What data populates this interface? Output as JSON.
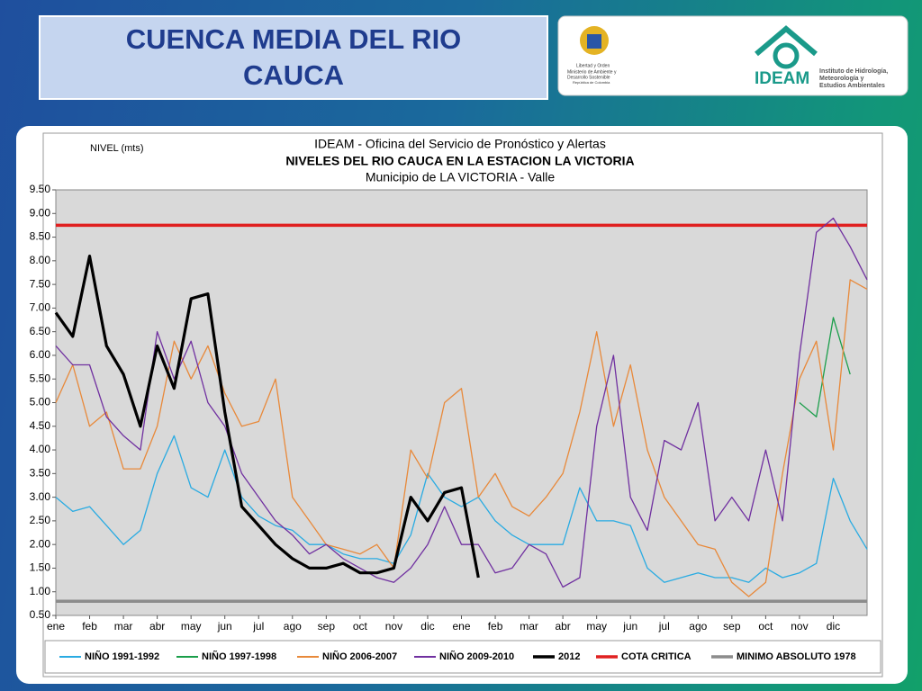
{
  "header": {
    "title": [
      "CUENCA  MEDIA DEL RIO",
      "CAUCA"
    ],
    "logo_left": [
      "Libertad y Orden",
      "Ministerio de Ambiente y",
      "Desarrollo Sostenible",
      "República de Colombia"
    ],
    "logo_right": {
      "name": "IDEAM",
      "subtitle": [
        "Instituto de Hidrología,",
        "Meteorología y",
        "Estudios Ambientales"
      ]
    }
  },
  "chart_data": {
    "type": "line",
    "ylabel": "NIVEL (mts)",
    "title": "IDEAM - Oficina del Servicio de Pronóstico y Alertas",
    "subtitle": "NIVELES DEL RIO CAUCA EN LA ESTACION LA VICTORIA",
    "subtitle2": "Municipio de LA VICTORIA - Valle",
    "x": [
      0,
      0.5,
      1,
      1.5,
      2,
      2.5,
      3,
      3.5,
      4,
      4.5,
      5,
      5.5,
      6,
      6.5,
      7,
      7.5,
      8,
      8.5,
      9,
      9.5,
      10,
      10.5,
      11,
      11.5,
      12,
      12.5,
      13,
      13.5,
      14,
      14.5,
      15,
      15.5,
      16,
      16.5,
      17,
      17.5,
      18,
      18.5,
      19,
      19.5,
      20,
      20.5,
      21,
      21.5,
      22,
      22.5,
      23,
      23.5,
      24
    ],
    "xlim": [
      0,
      24
    ],
    "xticks": [
      {
        "value": 0,
        "label": "ene"
      },
      {
        "value": 1,
        "label": "feb"
      },
      {
        "value": 2,
        "label": "mar"
      },
      {
        "value": 3,
        "label": "abr"
      },
      {
        "value": 4,
        "label": "may"
      },
      {
        "value": 5,
        "label": "jun"
      },
      {
        "value": 6,
        "label": "jul"
      },
      {
        "value": 7,
        "label": "ago"
      },
      {
        "value": 8,
        "label": "sep"
      },
      {
        "value": 9,
        "label": "oct"
      },
      {
        "value": 10,
        "label": "nov"
      },
      {
        "value": 11,
        "label": "dic"
      },
      {
        "value": 12,
        "label": "ene"
      },
      {
        "value": 13,
        "label": "feb"
      },
      {
        "value": 14,
        "label": "mar"
      },
      {
        "value": 15,
        "label": "abr"
      },
      {
        "value": 16,
        "label": "may"
      },
      {
        "value": 17,
        "label": "jun"
      },
      {
        "value": 18,
        "label": "jul"
      },
      {
        "value": 19,
        "label": "ago"
      },
      {
        "value": 20,
        "label": "sep"
      },
      {
        "value": 21,
        "label": "oct"
      },
      {
        "value": 22,
        "label": "nov"
      },
      {
        "value": 23,
        "label": "dic"
      }
    ],
    "ylim": [
      0.5,
      9.5
    ],
    "yticks": [
      {
        "value": 0.5,
        "label": "0.50"
      },
      {
        "value": 1,
        "label": "1.00"
      },
      {
        "value": 1.5,
        "label": "1.50"
      },
      {
        "value": 2,
        "label": "2.00"
      },
      {
        "value": 2.5,
        "label": "2.50"
      },
      {
        "value": 3,
        "label": "3.00"
      },
      {
        "value": 3.5,
        "label": "3.50"
      },
      {
        "value": 4,
        "label": "4.00"
      },
      {
        "value": 4.5,
        "label": "4.50"
      },
      {
        "value": 5,
        "label": "5.00"
      },
      {
        "value": 5.5,
        "label": "5.50"
      },
      {
        "value": 6,
        "label": "6.00"
      },
      {
        "value": 6.5,
        "label": "6.50"
      },
      {
        "value": 7,
        "label": "7.00"
      },
      {
        "value": 7.5,
        "label": "7.50"
      },
      {
        "value": 8,
        "label": "8.00"
      },
      {
        "value": 8.5,
        "label": "8.50"
      },
      {
        "value": 9,
        "label": "9.00"
      },
      {
        "value": 9.5,
        "label": "9.50"
      }
    ],
    "grid": false,
    "series": [
      {
        "name": "NIÑO 1991-1992",
        "color": "#29abe2",
        "width": 1.3,
        "values": [
          3.0,
          2.7,
          2.8,
          2.4,
          2.0,
          2.3,
          3.5,
          4.3,
          3.2,
          3.0,
          4.0,
          3.0,
          2.6,
          2.4,
          2.3,
          2.0,
          2.0,
          1.8,
          1.7,
          1.7,
          1.6,
          2.2,
          3.5,
          3.0,
          2.8,
          3.0,
          2.5,
          2.2,
          2.0,
          2.0,
          2.0,
          3.2,
          2.5,
          2.5,
          2.4,
          1.5,
          1.2,
          1.3,
          1.4,
          1.3,
          1.3,
          1.2,
          1.5,
          1.3,
          1.4,
          1.6,
          3.4,
          2.5,
          1.9
        ]
      },
      {
        "name": "NIÑO 1997-1998",
        "color": "#1a9e4a",
        "width": 1.3,
        "values": [
          null,
          null,
          null,
          null,
          null,
          null,
          null,
          null,
          null,
          null,
          null,
          null,
          null,
          null,
          null,
          null,
          null,
          null,
          null,
          null,
          null,
          null,
          null,
          null,
          null,
          null,
          null,
          null,
          null,
          null,
          null,
          null,
          null,
          null,
          null,
          null,
          null,
          null,
          null,
          null,
          null,
          null,
          null,
          null,
          5.0,
          4.7,
          6.8,
          5.6,
          null
        ]
      },
      {
        "name": "NIÑO 2006-2007",
        "color": "#e8893a",
        "width": 1.3,
        "values": [
          5.0,
          5.8,
          4.5,
          4.8,
          3.6,
          3.6,
          4.5,
          6.3,
          5.5,
          6.2,
          5.2,
          4.5,
          4.6,
          5.5,
          3.0,
          2.5,
          2.0,
          1.9,
          1.8,
          2.0,
          1.5,
          4.0,
          3.4,
          5.0,
          5.3,
          3.0,
          3.5,
          2.8,
          2.6,
          3.0,
          3.5,
          4.8,
          6.5,
          4.5,
          5.8,
          4.0,
          3.0,
          2.5,
          2.0,
          1.9,
          1.2,
          0.9,
          1.2,
          3.5,
          5.5,
          6.3,
          4.0,
          7.6,
          7.4
        ]
      },
      {
        "name": "NIÑO 2009-2010",
        "color": "#7030a0",
        "width": 1.3,
        "values": [
          6.2,
          5.8,
          5.8,
          4.7,
          4.3,
          4.0,
          6.5,
          5.5,
          6.3,
          5.0,
          4.5,
          3.5,
          3.0,
          2.5,
          2.2,
          1.8,
          2.0,
          1.7,
          1.5,
          1.3,
          1.2,
          1.5,
          2.0,
          2.8,
          2.0,
          2.0,
          1.4,
          1.5,
          2.0,
          1.8,
          1.1,
          1.3,
          4.5,
          6.0,
          3.0,
          2.3,
          4.2,
          4.0,
          5.0,
          2.5,
          3.0,
          2.5,
          4.0,
          2.5,
          6.0,
          8.6,
          8.9,
          8.3,
          7.6
        ]
      },
      {
        "name": "2012",
        "color": "#000000",
        "width": 3.2,
        "values": [
          6.9,
          6.4,
          8.1,
          6.2,
          5.6,
          4.5,
          6.2,
          5.3,
          7.2,
          7.3,
          4.8,
          2.8,
          2.4,
          2.0,
          1.7,
          1.5,
          1.5,
          1.6,
          1.4,
          1.4,
          1.5,
          3.0,
          2.5,
          3.1,
          3.2,
          1.3,
          null,
          null,
          null,
          null,
          null,
          null,
          null,
          null,
          null,
          null,
          null,
          null,
          null,
          null,
          null,
          null,
          null,
          null,
          null,
          null,
          null,
          null,
          null
        ]
      }
    ],
    "hlines": [
      {
        "name": "COTA CRITICA",
        "value": 8.75,
        "color": "#e02020"
      },
      {
        "name": "MINIMO ABSOLUTO 1978",
        "value": 0.8,
        "color": "#8c8c8c"
      }
    ]
  }
}
